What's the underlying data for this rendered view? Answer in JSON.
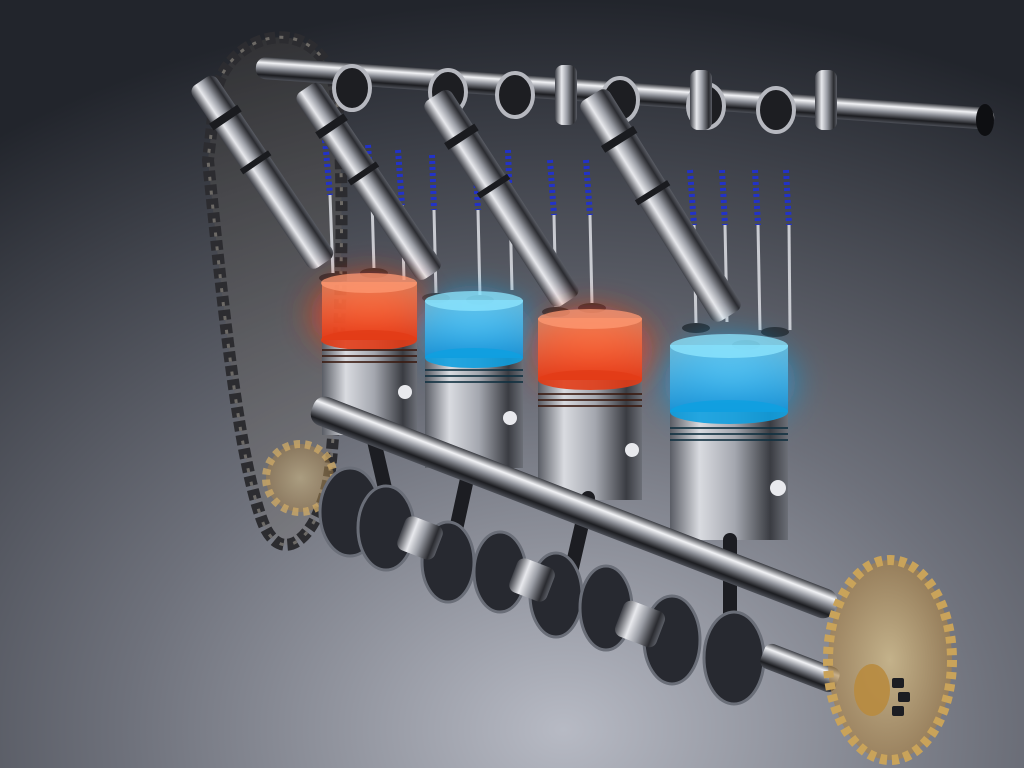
{
  "scene": {
    "colors": {
      "bg_top": "#23262d",
      "bg_mid": "#3c3f48",
      "bg_bottom": "#a4a7b2",
      "metal_dark": "#15161a",
      "metal_mid": "#6d717a",
      "metal_light": "#e6e8ec",
      "combustion_glow": "#ff4a1c",
      "intake_glow": "#21b8ff",
      "valve_spring": "#2232c8",
      "gear_gold": "#c9a35a",
      "chain": "#2c2c30"
    },
    "cylinders": [
      {
        "glow": "combustion"
      },
      {
        "glow": "intake"
      },
      {
        "glow": "combustion"
      },
      {
        "glow": "intake"
      }
    ]
  }
}
